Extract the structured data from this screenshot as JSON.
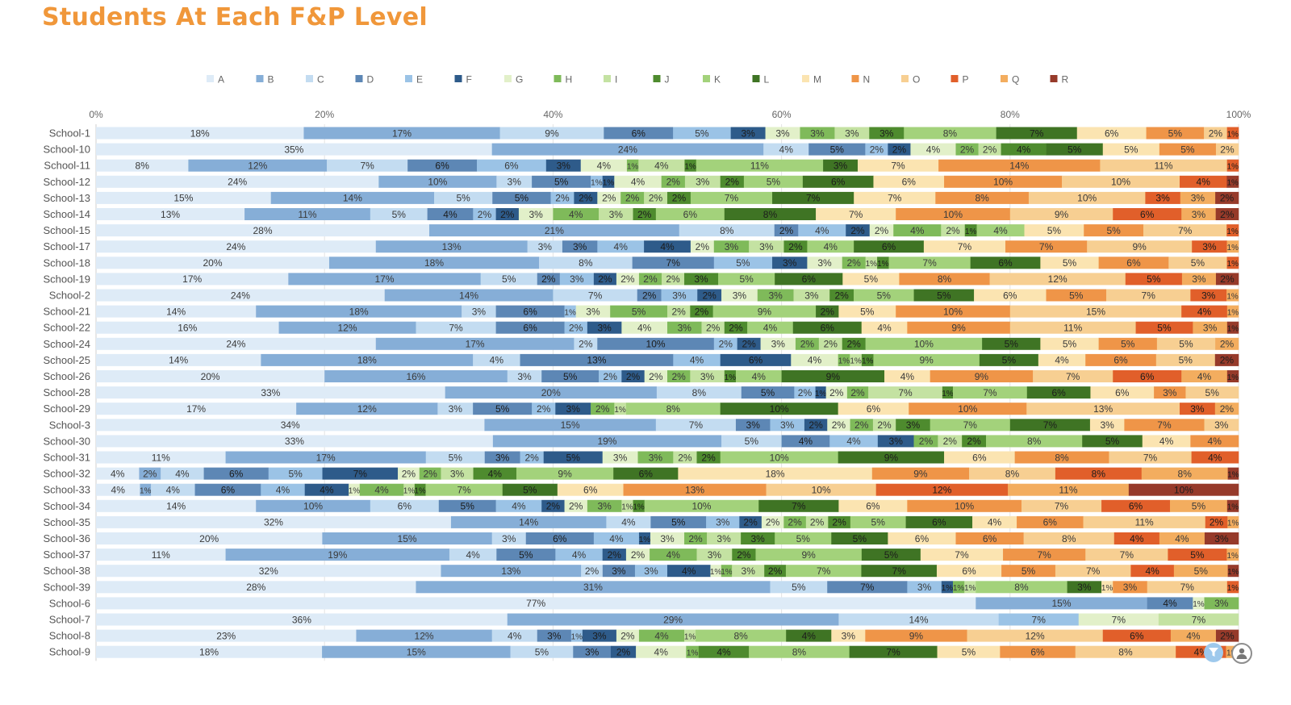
{
  "chart_data": {
    "type": "bar",
    "orientation": "horizontal",
    "stacked": "percent",
    "title": "Students At Each F&P Level",
    "xlabel": "",
    "ylabel": "",
    "xlim": [
      0,
      100
    ],
    "x_ticks": [
      "0%",
      "20%",
      "40%",
      "60%",
      "80%",
      "100%"
    ],
    "legend_position": "top",
    "grid": true,
    "categories": [
      "School-1",
      "School-10",
      "School-11",
      "School-12",
      "School-13",
      "School-14",
      "School-15",
      "School-17",
      "School-18",
      "School-19",
      "School-2",
      "School-21",
      "School-22",
      "School-24",
      "School-25",
      "School-26",
      "School-28",
      "School-29",
      "School-3",
      "School-30",
      "School-31",
      "School-32",
      "School-33",
      "School-34",
      "School-35",
      "School-36",
      "School-37",
      "School-38",
      "School-39",
      "School-6",
      "School-7",
      "School-8",
      "School-9"
    ],
    "series": [
      {
        "name": "A",
        "color": "#deebf7",
        "values": [
          18,
          35,
          8,
          24,
          15,
          13,
          28,
          24,
          20,
          17,
          24,
          14,
          16,
          24,
          14,
          20,
          33,
          17,
          34,
          33,
          11,
          4,
          4,
          14,
          32,
          20,
          11,
          32,
          28,
          77,
          36,
          23,
          18
        ]
      },
      {
        "name": "B",
        "color": "#86aed7",
        "values": [
          17,
          24,
          12,
          10,
          14,
          11,
          21,
          13,
          18,
          17,
          14,
          18,
          12,
          17,
          18,
          16,
          20,
          12,
          15,
          19,
          17,
          2,
          1,
          10,
          14,
          15,
          19,
          13,
          31,
          15,
          29,
          12,
          15
        ]
      },
      {
        "name": "C",
        "color": "#c3dcf1",
        "values": [
          9,
          4,
          7,
          3,
          5,
          5,
          8,
          3,
          8,
          5,
          7,
          3,
          7,
          2,
          4,
          3,
          8,
          3,
          7,
          5,
          5,
          4,
          4,
          6,
          4,
          3,
          4,
          2,
          5,
          0,
          14,
          4,
          5
        ]
      },
      {
        "name": "D",
        "color": "#5d87b5",
        "values": [
          6,
          5,
          6,
          5,
          5,
          4,
          2,
          3,
          7,
          2,
          2,
          6,
          6,
          10,
          13,
          5,
          5,
          5,
          3,
          4,
          3,
          6,
          6,
          5,
          5,
          6,
          5,
          3,
          7,
          4,
          0,
          3,
          3
        ]
      },
      {
        "name": "E",
        "color": "#9bc3e6",
        "values": [
          5,
          2,
          6,
          1,
          2,
          2,
          4,
          4,
          5,
          3,
          3,
          1,
          2,
          2,
          4,
          2,
          2,
          2,
          3,
          4,
          2,
          5,
          4,
          4,
          3,
          4,
          4,
          3,
          3,
          0,
          7,
          1,
          0
        ]
      },
      {
        "name": "F",
        "color": "#2e5b8a",
        "values": [
          3,
          2,
          3,
          1,
          2,
          2,
          2,
          4,
          3,
          2,
          2,
          0,
          3,
          2,
          6,
          2,
          1,
          3,
          2,
          3,
          5,
          7,
          4,
          2,
          2,
          1,
          2,
          4,
          1,
          0,
          0,
          3,
          2
        ]
      },
      {
        "name": "G",
        "color": "#e2f0c9",
        "values": [
          3,
          4,
          4,
          4,
          2,
          3,
          2,
          2,
          3,
          2,
          3,
          3,
          4,
          3,
          4,
          2,
          2,
          0,
          2,
          0,
          3,
          2,
          1,
          2,
          2,
          3,
          2,
          1,
          0,
          1,
          7,
          2,
          4
        ]
      },
      {
        "name": "H",
        "color": "#7fba5a",
        "values": [
          3,
          2,
          1,
          2,
          2,
          4,
          4,
          3,
          2,
          2,
          3,
          5,
          3,
          2,
          1,
          2,
          2,
          2,
          2,
          2,
          3,
          2,
          4,
          3,
          2,
          2,
          4,
          1,
          1,
          3,
          0,
          4,
          1
        ]
      },
      {
        "name": "I",
        "color": "#c4e2a2",
        "values": [
          3,
          2,
          4,
          3,
          2,
          3,
          2,
          3,
          1,
          2,
          3,
          2,
          2,
          2,
          1,
          3,
          7,
          1,
          2,
          2,
          2,
          3,
          1,
          1,
          2,
          3,
          3,
          3,
          1,
          0,
          7,
          1,
          0
        ]
      },
      {
        "name": "J",
        "color": "#4e8b2e",
        "values": [
          3,
          4,
          1,
          2,
          2,
          2,
          1,
          2,
          1,
          3,
          2,
          2,
          2,
          2,
          1,
          1,
          1,
          0,
          3,
          2,
          2,
          4,
          1,
          1,
          2,
          3,
          2,
          2,
          0,
          0,
          0,
          0,
          4
        ]
      },
      {
        "name": "K",
        "color": "#a3d27b",
        "values": [
          8,
          0,
          11,
          5,
          7,
          6,
          4,
          4,
          7,
          5,
          5,
          9,
          4,
          10,
          9,
          4,
          7,
          8,
          7,
          8,
          10,
          9,
          7,
          10,
          5,
          5,
          9,
          7,
          8,
          0,
          0,
          8,
          8
        ]
      },
      {
        "name": "L",
        "color": "#3f7424",
        "values": [
          7,
          5,
          3,
          6,
          7,
          8,
          0,
          6,
          6,
          6,
          5,
          2,
          6,
          5,
          5,
          9,
          6,
          10,
          7,
          5,
          9,
          6,
          5,
          7,
          6,
          5,
          5,
          7,
          3,
          0,
          0,
          4,
          7
        ]
      },
      {
        "name": "M",
        "color": "#fbe4b1",
        "values": [
          6,
          5,
          7,
          6,
          7,
          7,
          5,
          7,
          5,
          5,
          6,
          5,
          4,
          5,
          4,
          4,
          6,
          6,
          3,
          4,
          6,
          18,
          6,
          6,
          4,
          6,
          7,
          6,
          1,
          0,
          0,
          3,
          5
        ]
      },
      {
        "name": "N",
        "color": "#ef9548",
        "values": [
          5,
          5,
          14,
          10,
          8,
          10,
          5,
          7,
          6,
          8,
          5,
          10,
          9,
          5,
          6,
          9,
          3,
          10,
          7,
          4,
          8,
          9,
          13,
          10,
          6,
          6,
          7,
          5,
          3,
          0,
          0,
          9,
          6
        ]
      },
      {
        "name": "O",
        "color": "#f7cf92",
        "values": [
          2,
          2,
          11,
          10,
          10,
          9,
          7,
          9,
          5,
          12,
          7,
          15,
          11,
          5,
          5,
          7,
          5,
          13,
          3,
          0,
          7,
          8,
          10,
          7,
          11,
          8,
          7,
          7,
          7,
          0,
          0,
          12,
          8
        ]
      },
      {
        "name": "P",
        "color": "#e15f2a",
        "values": [
          1,
          0,
          1,
          4,
          3,
          6,
          1,
          3,
          1,
          5,
          3,
          4,
          5,
          0,
          0,
          6,
          0,
          3,
          0,
          0,
          4,
          8,
          12,
          6,
          2,
          4,
          5,
          4,
          1,
          0,
          0,
          6,
          4
        ]
      },
      {
        "name": "Q",
        "color": "#f3ad5f",
        "values": [
          0,
          0,
          0,
          0,
          3,
          3,
          0,
          1,
          0,
          3,
          1,
          1,
          3,
          2,
          0,
          4,
          0,
          2,
          0,
          0,
          0,
          8,
          11,
          5,
          1,
          4,
          1,
          5,
          0,
          0,
          0,
          4,
          1
        ]
      },
      {
        "name": "R",
        "color": "#963a2a",
        "values": [
          0,
          0,
          0,
          1,
          2,
          2,
          0,
          0,
          0,
          2,
          0,
          0,
          1,
          0,
          2,
          1,
          0,
          0,
          0,
          0,
          0,
          1,
          10,
          1,
          0,
          3,
          0,
          1,
          0,
          0,
          0,
          2,
          0
        ]
      }
    ]
  },
  "controls": {
    "filter_icon": "filter-icon",
    "user_icon": "user-icon"
  }
}
